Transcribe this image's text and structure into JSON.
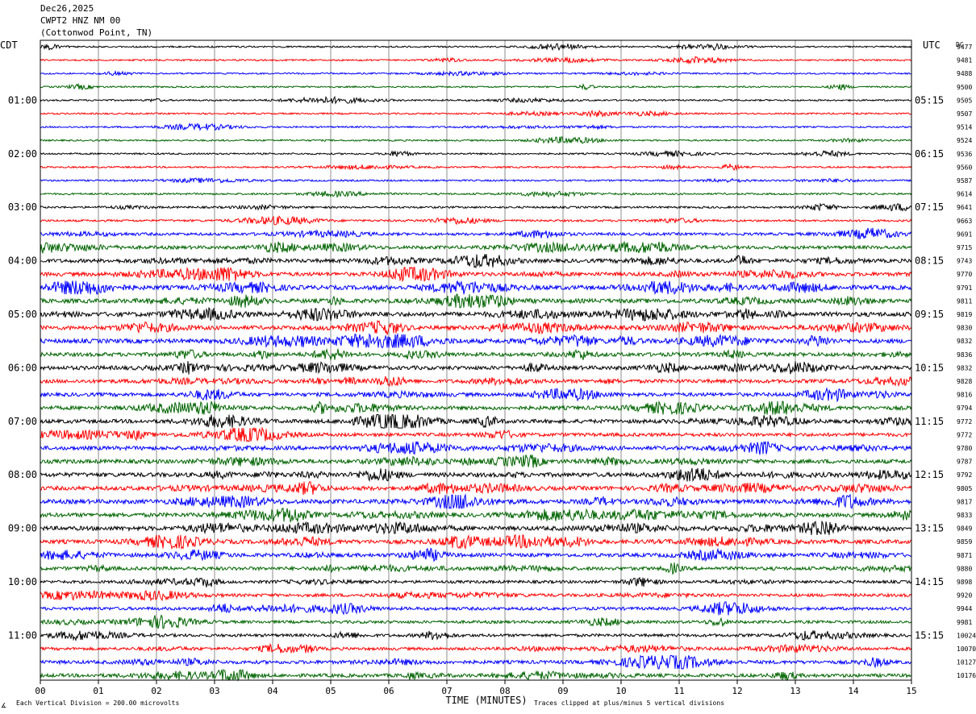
{
  "header": {
    "date": "Dec26,2025",
    "station": "CWPT2 HNZ NM 00",
    "location": "(Cottonwod Point, TN)"
  },
  "chart_data": {
    "type": "line",
    "title": "",
    "left_axis_label": "CDT",
    "right_axis_label": "UTC",
    "dc_label": "DC",
    "xlabel": "TIME (MINUTES)",
    "x_ticks": [
      "00",
      "01",
      "02",
      "03",
      "04",
      "05",
      "06",
      "07",
      "08",
      "09",
      "10",
      "11",
      "12",
      "13",
      "14",
      "15"
    ],
    "xlim": [
      0,
      15
    ],
    "grid": true,
    "trace_colors": [
      "#000000",
      "#ff0000",
      "#0000ff",
      "#006400"
    ],
    "left_hour_labels": [
      "01:00",
      "02:00",
      "03:00",
      "04:00",
      "05:00",
      "06:00",
      "07:00",
      "08:00",
      "09:00",
      "10:00",
      "11:00"
    ],
    "right_hour_labels": [
      "05:15",
      "06:15",
      "07:15",
      "08:15",
      "09:15",
      "10:15",
      "11:15",
      "12:15",
      "13:15",
      "14:15",
      "15:15"
    ],
    "hour_label_every_n_traces": 4,
    "hour_label_first_trace_index": 4,
    "dc_offsets": [
      "9477",
      "9481",
      "9488",
      "9500",
      "9505",
      "9507",
      "9514",
      "9524",
      "9536",
      "9560",
      "9587",
      "9614",
      "9641",
      "9663",
      "9691",
      "9715",
      "9743",
      "9770",
      "9791",
      "9811",
      "9819",
      "9830",
      "9832",
      "9836",
      "9832",
      "9828",
      "9816",
      "9794",
      "9772",
      "9772",
      "9780",
      "9787",
      "9792",
      "9805",
      "9817",
      "9833",
      "9849",
      "9859",
      "9871",
      "9880",
      "9898",
      "9920",
      "9944",
      "9981",
      "10024",
      "10070",
      "10127",
      "10176"
    ],
    "activity_level": [
      0.12,
      0.12,
      0.11,
      0.12,
      0.12,
      0.12,
      0.13,
      0.13,
      0.14,
      0.14,
      0.15,
      0.18,
      0.22,
      0.25,
      0.4,
      0.55,
      0.65,
      0.7,
      0.8,
      0.8,
      0.85,
      0.75,
      0.8,
      0.7,
      0.7,
      0.65,
      0.65,
      0.7,
      0.7,
      0.6,
      0.7,
      0.75,
      0.8,
      0.75,
      0.8,
      0.75,
      0.8,
      0.75,
      0.65,
      0.6,
      0.45,
      0.5,
      0.5,
      0.45,
      0.45,
      0.45,
      0.6,
      0.6
    ],
    "footer_left": "Each Vertical Division =  200.00 microvolts",
    "footer_right": "Traces clipped at plus/minus 5 vertical divisions",
    "corner_mark": "∡"
  }
}
